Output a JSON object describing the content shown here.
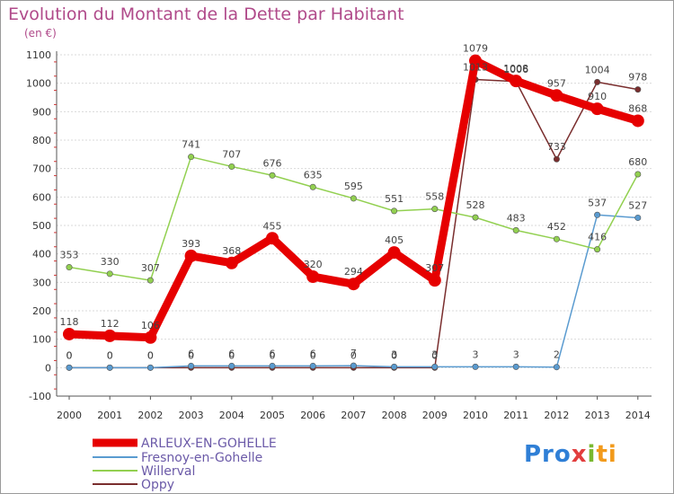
{
  "header": {
    "title": "Evolution du Montant de la Dette par Habitant",
    "unit": "(en €)"
  },
  "logo": {
    "text": "Proxiti"
  },
  "chart_data": {
    "type": "line",
    "title": "Evolution du Montant de la Dette par Habitant",
    "ylabel": "(en €)",
    "xlabel": "",
    "ylim": [
      -100,
      1100
    ],
    "yticks": [
      -100,
      0,
      100,
      200,
      300,
      400,
      500,
      600,
      700,
      800,
      900,
      1000,
      1100
    ],
    "grid": "horizontal",
    "x": [
      2000,
      2001,
      2002,
      2003,
      2004,
      2005,
      2006,
      2007,
      2008,
      2009,
      2010,
      2011,
      2012,
      2013,
      2014
    ],
    "series": [
      {
        "name": "Oppy",
        "color": "#7a2e2e",
        "values": [
          0,
          0,
          0,
          0,
          0,
          0,
          0,
          0,
          0,
          0,
          1013,
          1006,
          733,
          1004,
          978
        ],
        "labels": [
          "0",
          "0",
          "0",
          "0",
          "0",
          "0",
          "0",
          "0",
          "0",
          "0",
          "1013",
          "1006",
          "733",
          "1004",
          "978"
        ]
      },
      {
        "name": "Fresnoy-en-Gohelle",
        "color": "#5a9bd0",
        "values": [
          0,
          0,
          0,
          6,
          6,
          6,
          6,
          7,
          3,
          3,
          3,
          3,
          2,
          537,
          527
        ],
        "labels": [
          "0",
          "0",
          "0",
          "6",
          "6",
          "6",
          "6",
          "7",
          "3",
          "3",
          "3",
          "3",
          "2",
          "537",
          "527"
        ]
      },
      {
        "name": "Willerval",
        "color": "#92d050",
        "values": [
          353,
          330,
          307,
          741,
          707,
          676,
          635,
          595,
          551,
          558,
          528,
          483,
          452,
          416,
          680
        ],
        "labels": [
          "353",
          "330",
          "307",
          "741",
          "707",
          "676",
          "635",
          "595",
          "551",
          "558",
          "528",
          "483",
          "452",
          "416",
          "680"
        ]
      },
      {
        "name": "ARLEUX-EN-GOHELLE",
        "color": "#e60000",
        "values": [
          118,
          112,
          106,
          393,
          368,
          455,
          320,
          294,
          405,
          307,
          1079,
          1008,
          957,
          910,
          868
        ],
        "labels": [
          "118",
          "112",
          "106",
          "393",
          "368",
          "455",
          "320",
          "294",
          "405",
          "307",
          "1079",
          "1008",
          "957",
          "910",
          "868"
        ]
      }
    ],
    "legend": {
      "position": "bottom-left",
      "entries": [
        {
          "name": "ARLEUX-EN-GOHELLE",
          "color": "#e60000"
        },
        {
          "name": "Fresnoy-en-Gohelle",
          "color": "#5a9bd0"
        },
        {
          "name": "Willerval",
          "color": "#92d050"
        },
        {
          "name": "Oppy",
          "color": "#7a2e2e"
        }
      ]
    }
  }
}
